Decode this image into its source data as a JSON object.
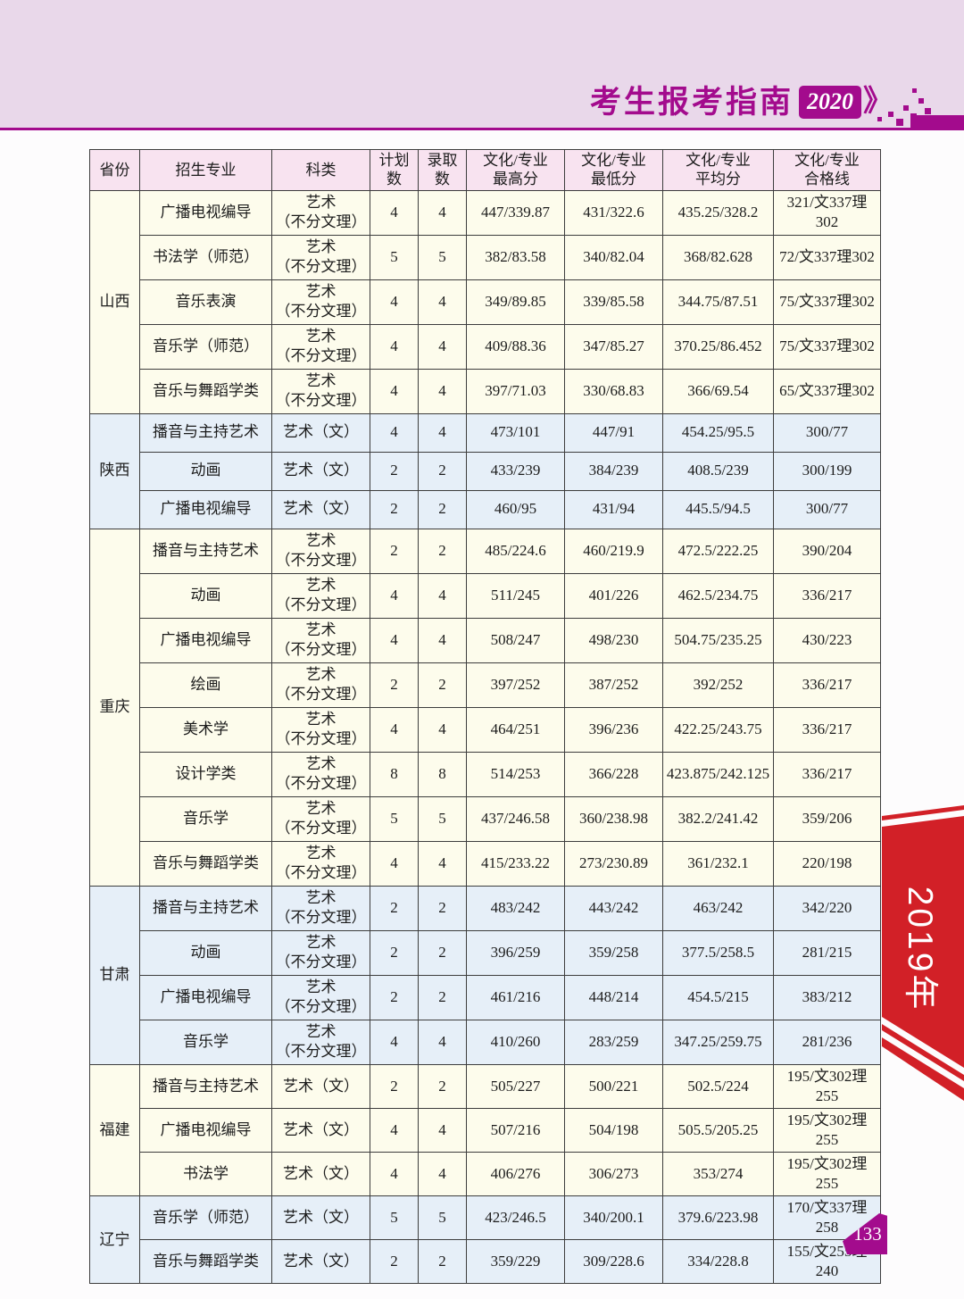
{
  "header": {
    "title": "考生报考指南",
    "year_badge": "2020",
    "chevron": "》"
  },
  "side_ribbon": {
    "label": "2019年"
  },
  "page_number": "133",
  "table": {
    "columns": [
      "省份",
      "招生专业",
      "科类",
      "计划数",
      "录取数",
      "文化/专业\n最高分",
      "文化/专业\n最低分",
      "文化/专业\n平均分",
      "文化/专业\n合格线"
    ],
    "sections": [
      {
        "province": "山西",
        "tone": "ivory",
        "rows": [
          [
            "广播电视编导",
            "艺术\n（不分文理）",
            "4",
            "4",
            "447/339.87",
            "431/322.6",
            "435.25/328.2",
            "321/文337理302"
          ],
          [
            "书法学（师范）",
            "艺术\n（不分文理）",
            "5",
            "5",
            "382/83.58",
            "340/82.04",
            "368/82.628",
            "72/文337理302"
          ],
          [
            "音乐表演",
            "艺术\n（不分文理）",
            "4",
            "4",
            "349/89.85",
            "339/85.58",
            "344.75/87.51",
            "75/文337理302"
          ],
          [
            "音乐学（师范）",
            "艺术\n（不分文理）",
            "4",
            "4",
            "409/88.36",
            "347/85.27",
            "370.25/86.452",
            "75/文337理302"
          ],
          [
            "音乐与舞蹈学类",
            "艺术\n（不分文理）",
            "4",
            "4",
            "397/71.03",
            "330/68.83",
            "366/69.54",
            "65/文337理302"
          ]
        ]
      },
      {
        "province": "陕西",
        "tone": "blue",
        "rows": [
          [
            "播音与主持艺术",
            "艺术（文）",
            "4",
            "4",
            "473/101",
            "447/91",
            "454.25/95.5",
            "300/77"
          ],
          [
            "动画",
            "艺术（文）",
            "2",
            "2",
            "433/239",
            "384/239",
            "408.5/239",
            "300/199"
          ],
          [
            "广播电视编导",
            "艺术（文）",
            "2",
            "2",
            "460/95",
            "431/94",
            "445.5/94.5",
            "300/77"
          ]
        ]
      },
      {
        "province": "重庆",
        "tone": "ivory",
        "rows": [
          [
            "播音与主持艺术",
            "艺术\n（不分文理）",
            "2",
            "2",
            "485/224.6",
            "460/219.9",
            "472.5/222.25",
            "390/204"
          ],
          [
            "动画",
            "艺术\n（不分文理）",
            "4",
            "4",
            "511/245",
            "401/226",
            "462.5/234.75",
            "336/217"
          ],
          [
            "广播电视编导",
            "艺术\n（不分文理）",
            "4",
            "4",
            "508/247",
            "498/230",
            "504.75/235.25",
            "430/223"
          ],
          [
            "绘画",
            "艺术\n（不分文理）",
            "2",
            "2",
            "397/252",
            "387/252",
            "392/252",
            "336/217"
          ],
          [
            "美术学",
            "艺术\n（不分文理）",
            "4",
            "4",
            "464/251",
            "396/236",
            "422.25/243.75",
            "336/217"
          ],
          [
            "设计学类",
            "艺术\n（不分文理）",
            "8",
            "8",
            "514/253",
            "366/228",
            "423.875/242.125",
            "336/217"
          ],
          [
            "音乐学",
            "艺术\n（不分文理）",
            "5",
            "5",
            "437/246.58",
            "360/238.98",
            "382.2/241.42",
            "359/206"
          ],
          [
            "音乐与舞蹈学类",
            "艺术\n（不分文理）",
            "4",
            "4",
            "415/233.22",
            "273/230.89",
            "361/232.1",
            "220/198"
          ]
        ]
      },
      {
        "province": "甘肃",
        "tone": "blue",
        "rows": [
          [
            "播音与主持艺术",
            "艺术\n（不分文理）",
            "2",
            "2",
            "483/242",
            "443/242",
            "463/242",
            "342/220"
          ],
          [
            "动画",
            "艺术\n（不分文理）",
            "2",
            "2",
            "396/259",
            "359/258",
            "377.5/258.5",
            "281/215"
          ],
          [
            "广播电视编导",
            "艺术\n（不分文理）",
            "2",
            "2",
            "461/216",
            "448/214",
            "454.5/215",
            "383/212"
          ],
          [
            "音乐学",
            "艺术\n（不分文理）",
            "4",
            "4",
            "410/260",
            "283/259",
            "347.25/259.75",
            "281/236"
          ]
        ]
      },
      {
        "province": "福建",
        "tone": "ivory",
        "rows": [
          [
            "播音与主持艺术",
            "艺术（文）",
            "2",
            "2",
            "505/227",
            "500/221",
            "502.5/224",
            "195/文302理255"
          ],
          [
            "广播电视编导",
            "艺术（文）",
            "4",
            "4",
            "507/216",
            "504/198",
            "505.5/205.25",
            "195/文302理255"
          ],
          [
            "书法学",
            "艺术（文）",
            "4",
            "4",
            "406/276",
            "306/273",
            "353/274",
            "195/文302理255"
          ]
        ]
      },
      {
        "province": "辽宁",
        "tone": "blue",
        "rows": [
          [
            "音乐学（师范）",
            "艺术（文）",
            "5",
            "5",
            "423/246.5",
            "340/200.1",
            "379.6/223.98",
            "170/文337理258"
          ],
          [
            "音乐与舞蹈学类",
            "艺术（文）",
            "2",
            "2",
            "359/229",
            "309/228.6",
            "334/228.8",
            "155/文255理240"
          ]
        ]
      }
    ]
  },
  "colors": {
    "accent_magenta": "#a30b8d",
    "masthead_band": "#e9d8ea",
    "table_header_pink": "#f8e3f0",
    "row_ivory": "#fdfcec",
    "row_blue": "#e6eff8",
    "ribbon_red": "#d22027",
    "grid_border": "#3d3d3d"
  }
}
